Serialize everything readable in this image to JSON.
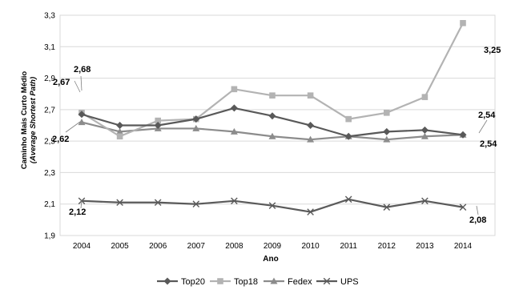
{
  "chart_data": {
    "type": "line",
    "xlabel": "Ano",
    "ylabel_lines": [
      "Caminho Mais Curto Médio",
      "(Average Shortest Path)"
    ],
    "categories": [
      "2004",
      "2005",
      "2006",
      "2007",
      "2008",
      "2009",
      "2010",
      "2011",
      "2012",
      "2013",
      "2014"
    ],
    "ylim": [
      1.9,
      3.3
    ],
    "yticks": [
      "1,9",
      "2,1",
      "2,3",
      "2,5",
      "2,7",
      "2,9",
      "3,1",
      "3,3"
    ],
    "ytick_values": [
      1.9,
      2.1,
      2.3,
      2.5,
      2.7,
      2.9,
      3.1,
      3.3
    ],
    "grid": "horizontal",
    "legend_position": "bottom",
    "series": [
      {
        "name": "Top20",
        "marker": "diamond",
        "color": "#595959",
        "values": [
          2.67,
          2.6,
          2.6,
          2.64,
          2.71,
          2.66,
          2.6,
          2.53,
          2.56,
          2.57,
          2.54
        ]
      },
      {
        "name": "Top18",
        "marker": "square",
        "color": "#b3b3b3",
        "values": [
          2.68,
          2.53,
          2.63,
          2.64,
          2.83,
          2.79,
          2.79,
          2.64,
          2.68,
          2.78,
          3.25
        ]
      },
      {
        "name": "Fedex",
        "marker": "triangle",
        "color": "#8c8c8c",
        "values": [
          2.62,
          2.56,
          2.58,
          2.58,
          2.56,
          2.53,
          2.51,
          2.53,
          2.51,
          2.53,
          2.54
        ]
      },
      {
        "name": "UPS",
        "marker": "x",
        "color": "#5a5a5a",
        "values": [
          2.12,
          2.11,
          2.11,
          2.1,
          2.12,
          2.09,
          2.05,
          2.13,
          2.08,
          2.12,
          2.08
        ]
      }
    ],
    "annotations": [
      {
        "text": "2,68"
      },
      {
        "text": "2,67"
      },
      {
        "text": "2,62"
      },
      {
        "text": "3,25"
      },
      {
        "text": "2,54"
      },
      {
        "text": "2,54"
      },
      {
        "text": "2,12"
      },
      {
        "text": "2,08"
      }
    ]
  }
}
